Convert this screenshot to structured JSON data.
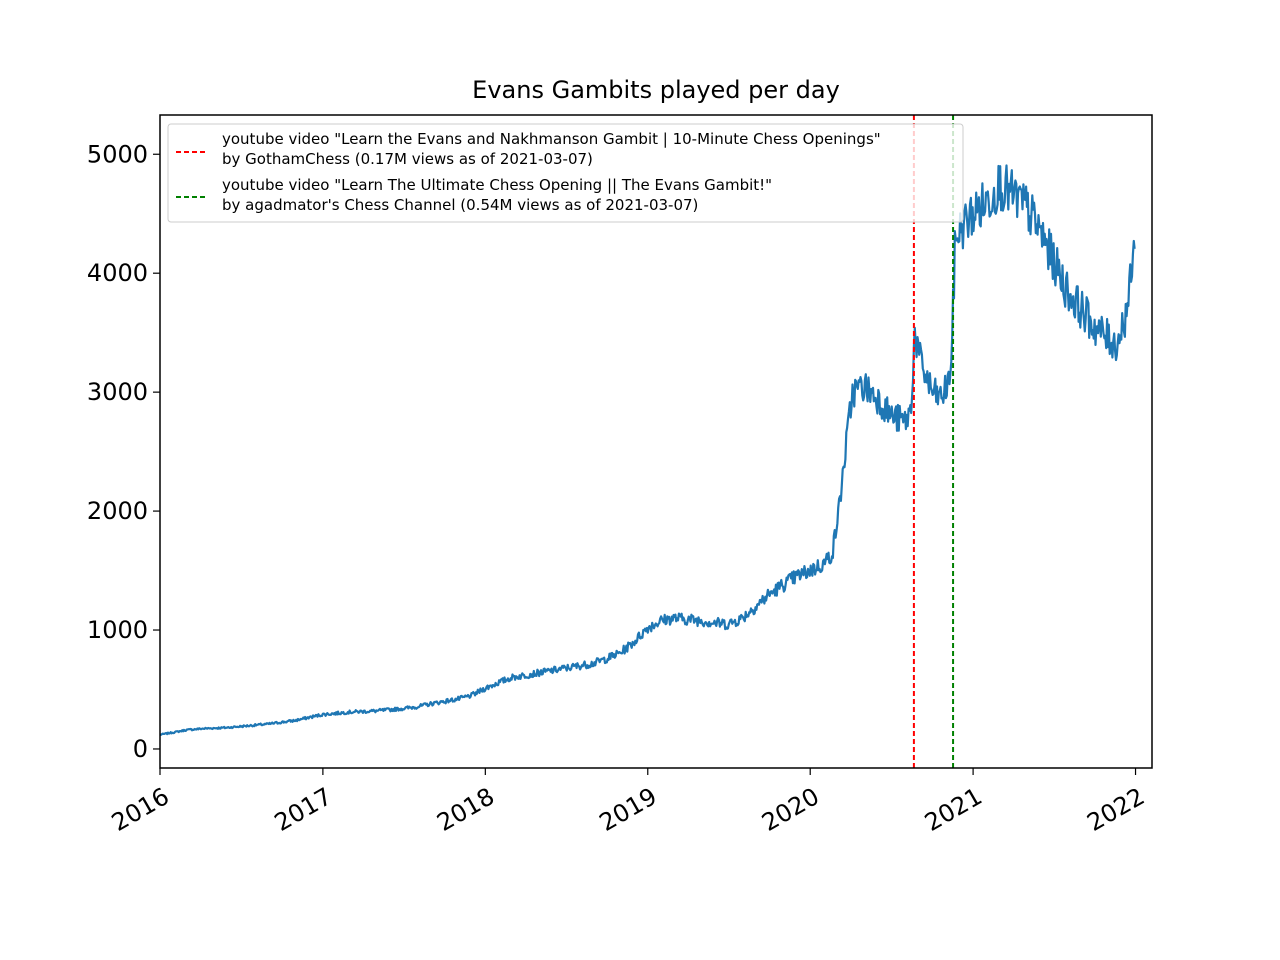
{
  "chart_data": {
    "type": "line",
    "title": "Evans Gambits played per day",
    "xlabel": "",
    "ylabel": "",
    "x_ticks": [
      "2016",
      "2017",
      "2018",
      "2019",
      "2020",
      "2021",
      "2022"
    ],
    "y_ticks": [
      "0",
      "1000",
      "2000",
      "3000",
      "4000",
      "5000"
    ],
    "xlim": [
      "2016-01-01",
      "2022-02-07"
    ],
    "ylim": [
      -160,
      5330
    ],
    "grid": false,
    "legend_position": "upper-left",
    "series": [
      {
        "color": "#1f77b4",
        "points": [
          [
            "2016-01-01",
            120
          ],
          [
            "2016-02-01",
            140
          ],
          [
            "2016-03-01",
            160
          ],
          [
            "2016-04-01",
            170
          ],
          [
            "2016-05-01",
            175
          ],
          [
            "2016-06-01",
            180
          ],
          [
            "2016-07-01",
            190
          ],
          [
            "2016-08-01",
            200
          ],
          [
            "2016-09-01",
            210
          ],
          [
            "2016-10-01",
            225
          ],
          [
            "2016-11-01",
            240
          ],
          [
            "2016-12-01",
            265
          ],
          [
            "2017-01-01",
            290
          ],
          [
            "2017-02-01",
            300
          ],
          [
            "2017-03-01",
            310
          ],
          [
            "2017-04-01",
            315
          ],
          [
            "2017-05-01",
            320
          ],
          [
            "2017-06-01",
            330
          ],
          [
            "2017-07-01",
            340
          ],
          [
            "2017-08-01",
            355
          ],
          [
            "2017-09-01",
            380
          ],
          [
            "2017-10-01",
            400
          ],
          [
            "2017-11-01",
            420
          ],
          [
            "2017-12-01",
            450
          ],
          [
            "2018-01-01",
            510
          ],
          [
            "2018-02-01",
            560
          ],
          [
            "2018-03-01",
            600
          ],
          [
            "2018-04-01",
            620
          ],
          [
            "2018-05-01",
            640
          ],
          [
            "2018-06-01",
            660
          ],
          [
            "2018-07-01",
            680
          ],
          [
            "2018-08-01",
            700
          ],
          [
            "2018-09-01",
            720
          ],
          [
            "2018-10-01",
            760
          ],
          [
            "2018-11-01",
            810
          ],
          [
            "2018-12-01",
            900
          ],
          [
            "2019-01-01",
            1020
          ],
          [
            "2019-02-01",
            1080
          ],
          [
            "2019-03-01",
            1100
          ],
          [
            "2019-04-01",
            1090
          ],
          [
            "2019-05-01",
            1080
          ],
          [
            "2019-06-01",
            1060
          ],
          [
            "2019-07-01",
            1050
          ],
          [
            "2019-08-01",
            1100
          ],
          [
            "2019-09-01",
            1200
          ],
          [
            "2019-10-01",
            1300
          ],
          [
            "2019-11-01",
            1380
          ],
          [
            "2019-12-01",
            1450
          ],
          [
            "2020-01-01",
            1500
          ],
          [
            "2020-02-01",
            1560
          ],
          [
            "2020-02-20",
            1650
          ],
          [
            "2020-03-05",
            2000
          ],
          [
            "2020-03-20",
            2500
          ],
          [
            "2020-04-05",
            3000
          ],
          [
            "2020-05-01",
            3050
          ],
          [
            "2020-06-01",
            2950
          ],
          [
            "2020-07-01",
            2800
          ],
          [
            "2020-08-01",
            2750
          ],
          [
            "2020-08-15",
            2850
          ],
          [
            "2020-08-22",
            3500
          ],
          [
            "2020-09-05",
            3250
          ],
          [
            "2020-10-01",
            3000
          ],
          [
            "2020-10-20",
            2950
          ],
          [
            "2020-11-05",
            3050
          ],
          [
            "2020-11-14",
            3300
          ],
          [
            "2020-11-17",
            3700
          ],
          [
            "2020-11-22",
            4300
          ],
          [
            "2020-12-10",
            4400
          ],
          [
            "2021-01-01",
            4500
          ],
          [
            "2021-02-01",
            4600
          ],
          [
            "2021-03-01",
            4750
          ],
          [
            "2021-04-01",
            4650
          ],
          [
            "2021-05-01",
            4550
          ],
          [
            "2021-06-01",
            4350
          ],
          [
            "2021-07-01",
            4100
          ],
          [
            "2021-08-01",
            3850
          ],
          [
            "2021-09-01",
            3700
          ],
          [
            "2021-10-01",
            3550
          ],
          [
            "2021-11-01",
            3450
          ],
          [
            "2021-11-20",
            3400
          ],
          [
            "2021-12-10",
            3650
          ],
          [
            "2021-12-20",
            3900
          ],
          [
            "2021-12-31",
            4250
          ]
        ]
      }
    ],
    "vlines": [
      {
        "date": "2020-08-21",
        "color": "#ff0000",
        "style": "dashed",
        "label_line1": "youtube video \"Learn the Evans and Nakhmanson Gambit | 10-Minute Chess Openings\"",
        "label_line2": "by GothamChess (0.17M views as of 2021-03-07)"
      },
      {
        "date": "2020-11-17",
        "color": "#008000",
        "style": "dashed",
        "label_line1": "youtube video \"Learn The Ultimate Chess Opening || The Evans Gambit!\"",
        "label_line2": "by agadmator's Chess Channel (0.54M views as of 2021-03-07)"
      }
    ]
  }
}
